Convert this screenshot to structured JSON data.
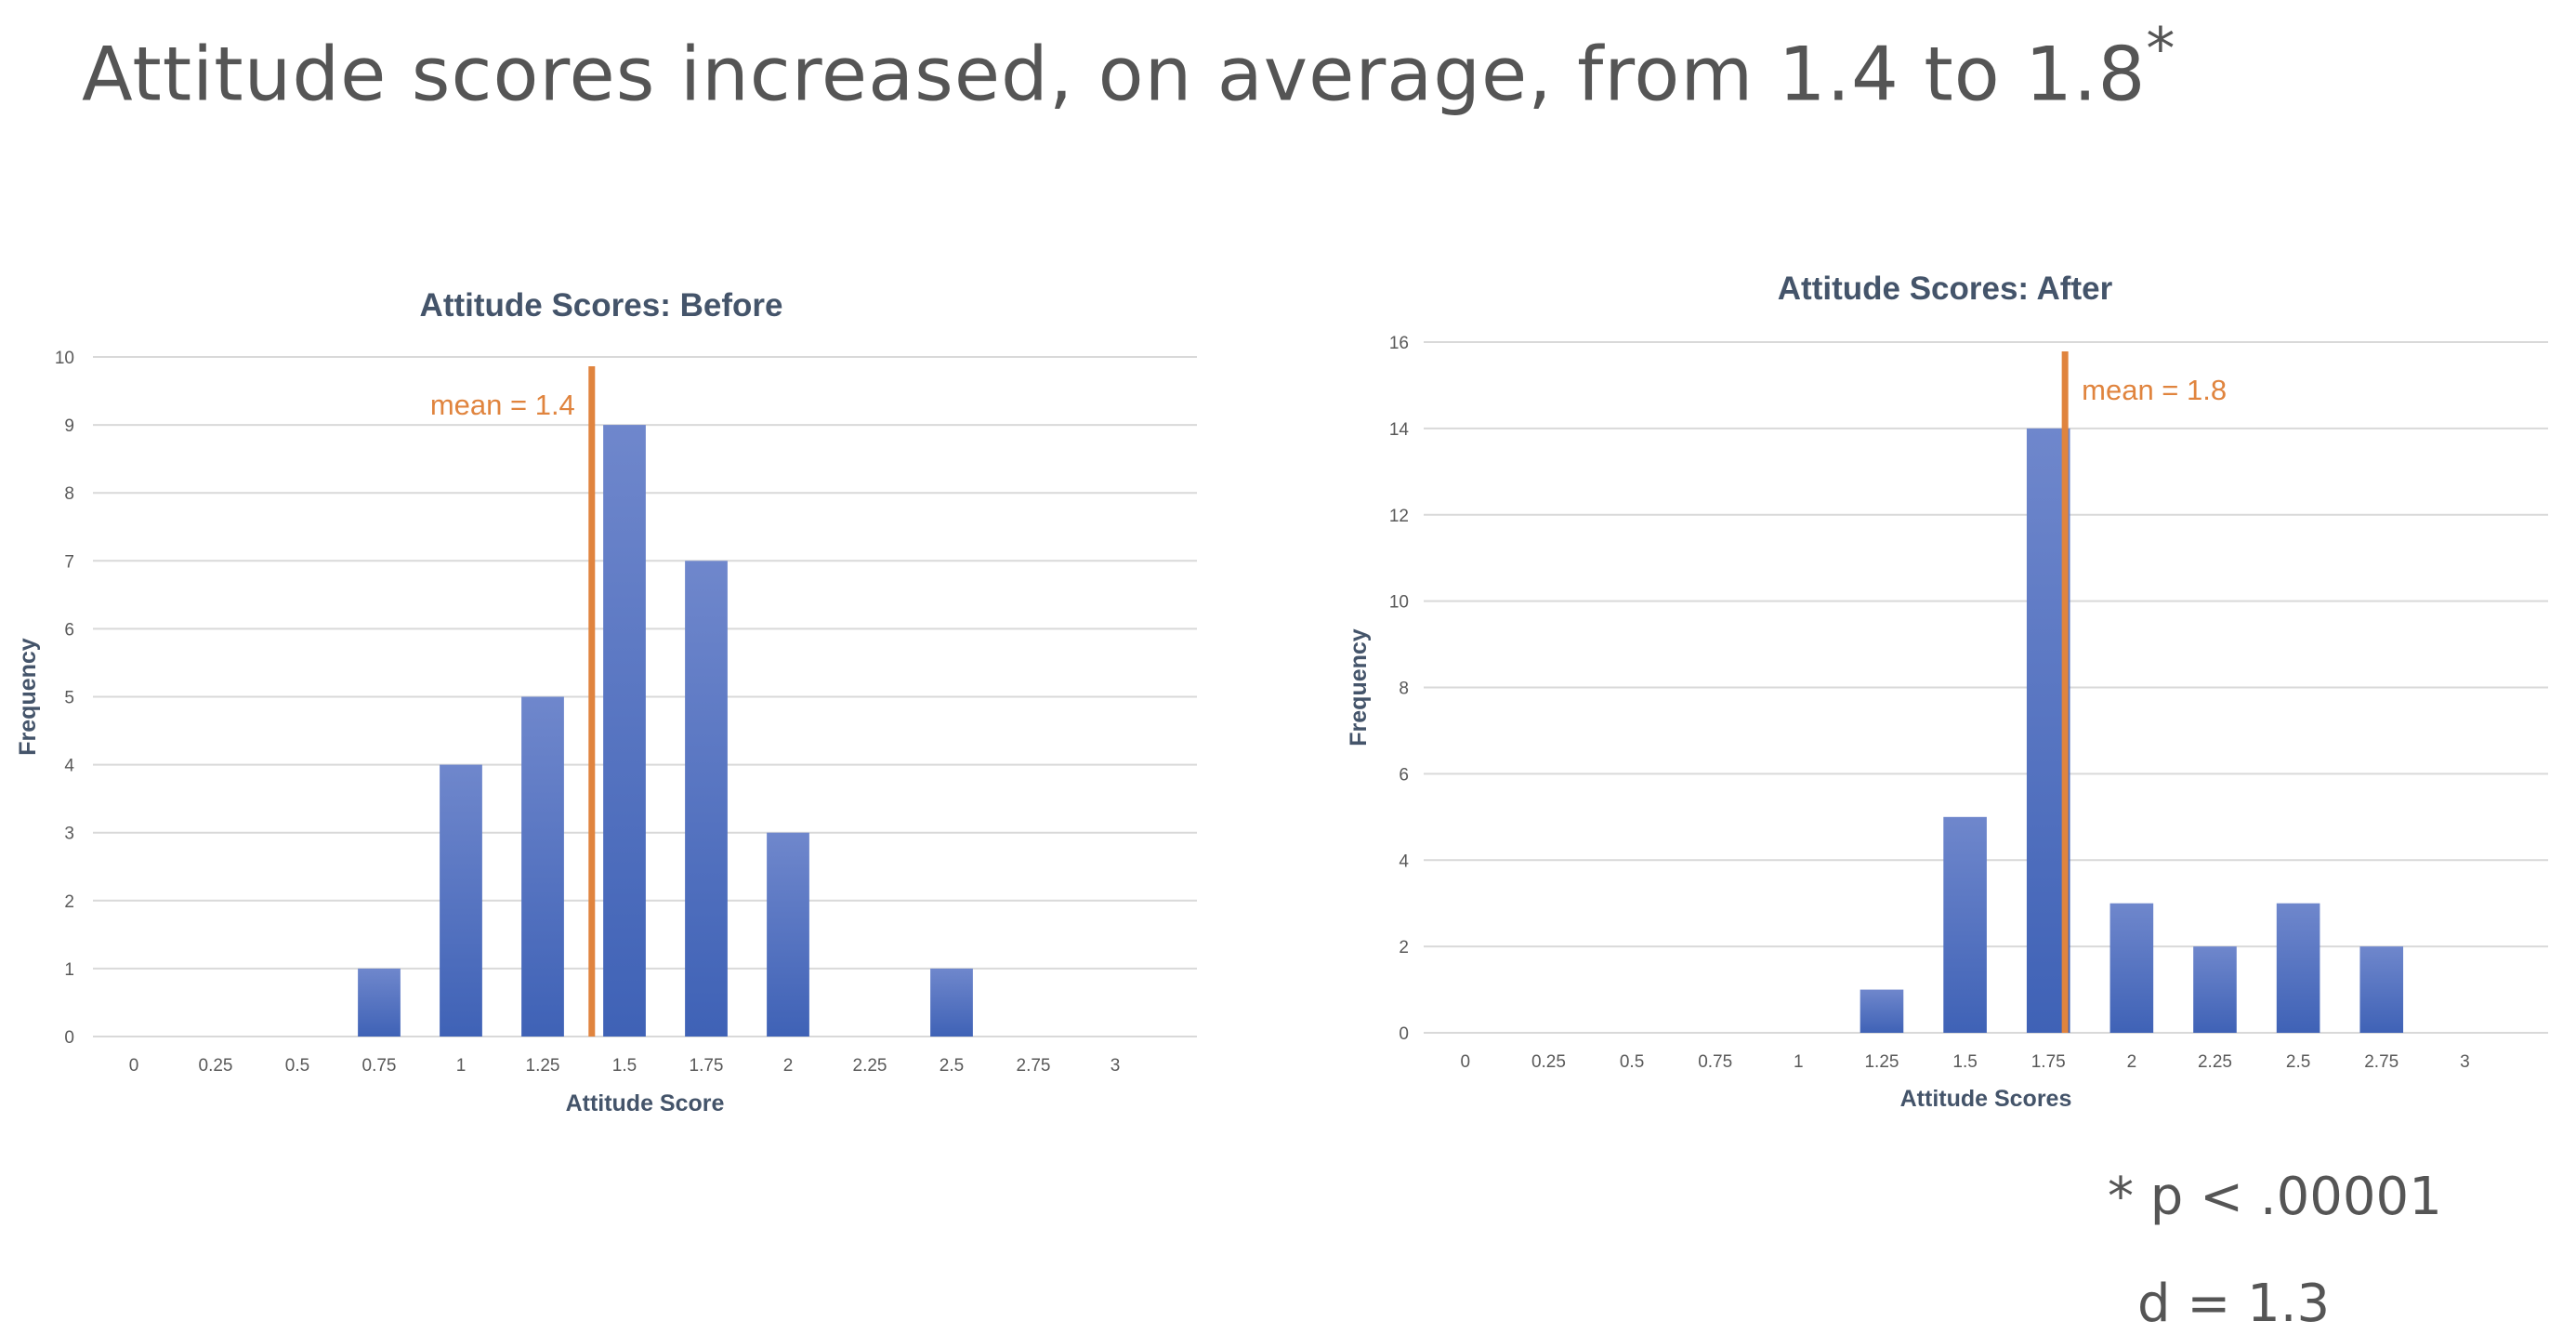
{
  "slide": {
    "title": "Attitude scores increased, on average, from 1.4 to 1.8",
    "title_marker": "*",
    "footnote_p": "* p < .00001",
    "footnote_d": "d = 1.3"
  },
  "colors": {
    "bar_top": "#6f87cc",
    "bar_bottom": "#3f62b6",
    "mean_line": "#e0843e",
    "grid": "#d9d9d9",
    "axis_text": "#595959",
    "title_text": "#44546a"
  },
  "chart_data": [
    {
      "type": "bar",
      "title": "Attitude Scores: Before",
      "xlabel": "Attitude Score",
      "ylabel": "Frequency",
      "categories": [
        "0",
        "0.25",
        "0.5",
        "0.75",
        "1",
        "1.25",
        "1.5",
        "1.75",
        "2",
        "2.25",
        "2.5",
        "2.75",
        "3"
      ],
      "values": [
        0,
        0,
        0,
        1,
        4,
        5,
        9,
        7,
        3,
        0,
        1,
        0,
        0
      ],
      "ylim": [
        0,
        10
      ],
      "yticks": [
        0,
        1,
        2,
        3,
        4,
        5,
        6,
        7,
        8,
        9,
        10
      ],
      "mean_value": 1.4,
      "mean_label": "mean = 1.4",
      "mean_label_side": "left",
      "grid": true
    },
    {
      "type": "bar",
      "title": "Attitude Scores: After",
      "xlabel": "Attitude Scores",
      "ylabel": "Frequency",
      "categories": [
        "0",
        "0.25",
        "0.5",
        "0.75",
        "1",
        "1.25",
        "1.5",
        "1.75",
        "2",
        "2.25",
        "2.5",
        "2.75",
        "3"
      ],
      "values": [
        0,
        0,
        0,
        0,
        0,
        1,
        5,
        14,
        3,
        2,
        3,
        2,
        0
      ],
      "ylim": [
        0,
        16
      ],
      "yticks": [
        0,
        2,
        4,
        6,
        8,
        10,
        12,
        14,
        16
      ],
      "mean_value": 1.8,
      "mean_label": "mean = 1.8",
      "mean_label_side": "right",
      "grid": true
    }
  ]
}
